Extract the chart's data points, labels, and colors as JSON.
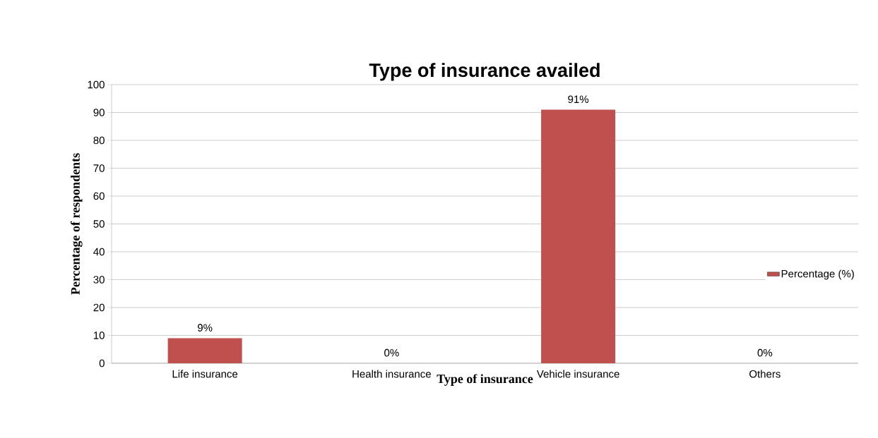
{
  "chart_data": {
    "type": "bar",
    "title": "Type of insurance availed",
    "xlabel": "Type of insurance",
    "ylabel": "Percentage of respondents",
    "categories": [
      "Life insurance",
      "Health insurance",
      "Vehicle insurance",
      "Others"
    ],
    "series": [
      {
        "name": "Percentage (%)",
        "color": "#c0504d",
        "values": [
          9,
          0,
          91,
          0
        ],
        "value_labels": [
          "9%",
          "0%",
          "91%",
          "0%"
        ]
      }
    ],
    "ylim": [
      0,
      100
    ],
    "yticks": [
      0,
      10,
      20,
      30,
      40,
      50,
      60,
      70,
      80,
      90,
      100
    ],
    "grid": "y",
    "legend": "right"
  }
}
